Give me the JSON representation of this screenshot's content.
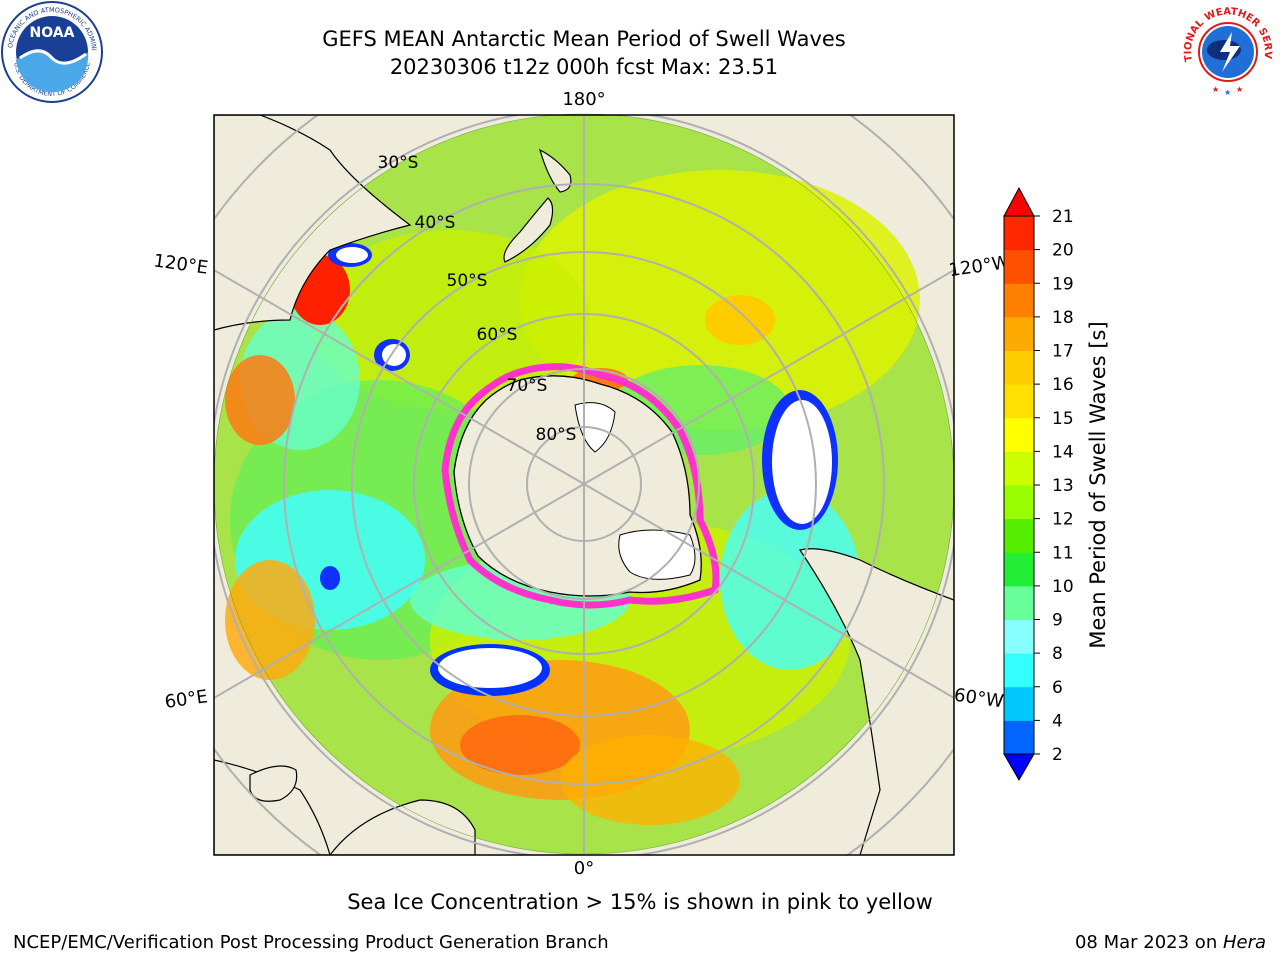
{
  "header": {
    "title": "GEFS MEAN Antarctic Mean Period of Swell Waves",
    "subtitle": "20230306 t12z 000h fcst   Max: 23.51"
  },
  "logos": {
    "left": "noaa-logo",
    "right": "national-weather-service-logo",
    "left_text": "NOAA",
    "left_ring_text": "NATIONAL OCEANIC AND ATMOSPHERIC ADMINISTRATION",
    "left_ring_bottom": "U.S. DEPARTMENT OF COMMERCE",
    "right_ring_text": "NATIONAL WEATHER SERVICE"
  },
  "map": {
    "projection": "south-polar-stereographic",
    "longitude_labels": {
      "top": "180°",
      "upper_left": "120°E",
      "upper_right": "120°W",
      "lower_left": "60°E",
      "lower_right": "60°W",
      "bottom": "0°"
    },
    "latitude_labels": [
      "30°S",
      "40°S",
      "50°S",
      "60°S",
      "70°S",
      "80°S"
    ],
    "colors": {
      "land": "#efecdc",
      "grid": "#b0b0b0",
      "sea_ice": "#ff33cc",
      "no_data": "#ffffff"
    }
  },
  "colorbar": {
    "label": "Mean Period of Swell Waves [s]",
    "ticks": [
      "2",
      "4",
      "6",
      "8",
      "9",
      "10",
      "11",
      "12",
      "13",
      "14",
      "15",
      "16",
      "17",
      "18",
      "19",
      "20",
      "21"
    ],
    "colors": [
      "#0000ff",
      "#0066ff",
      "#00c8ff",
      "#33ffff",
      "#88ffff",
      "#66ff99",
      "#22ee33",
      "#55ee00",
      "#99ff00",
      "#ccff00",
      "#ffff00",
      "#ffe000",
      "#ffcc00",
      "#ffaa00",
      "#ff8000",
      "#ff5000",
      "#ff2800"
    ],
    "under_color": "#0000ff",
    "over_color": "#ff0000"
  },
  "annotation": "Sea Ice Concentration > 15% is shown in pink to yellow",
  "footer": {
    "left": "NCEP/EMC/Verification Post Processing Product Generation Branch",
    "right_date": "08 Mar 2023 on ",
    "right_host": "Hera"
  }
}
